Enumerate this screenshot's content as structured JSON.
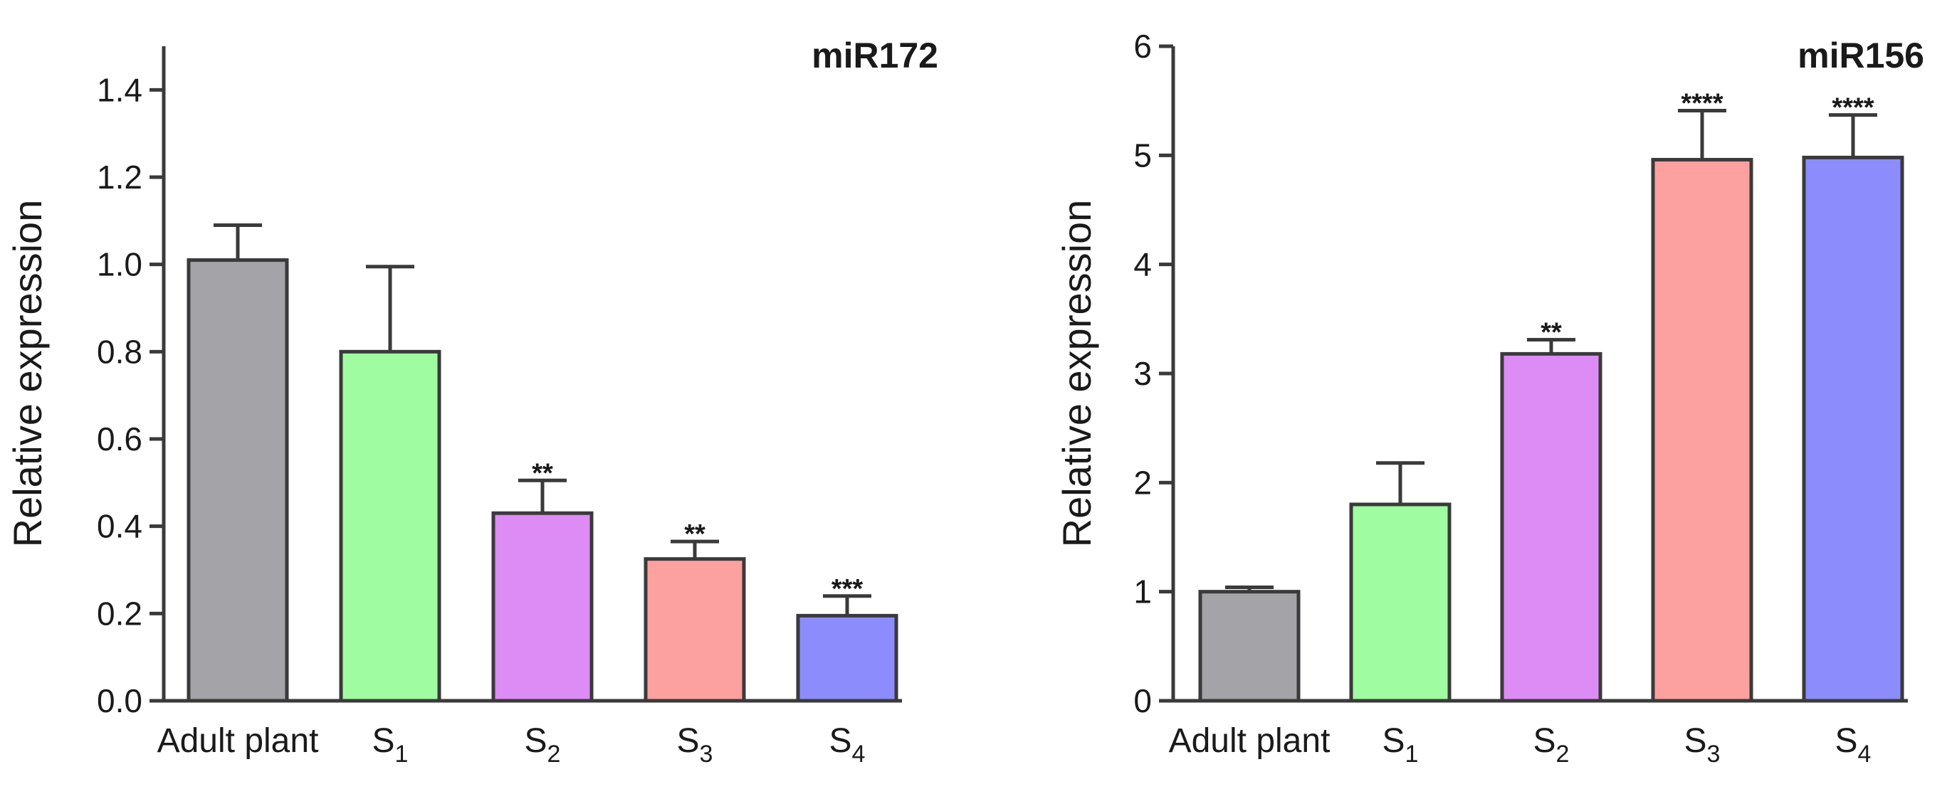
{
  "chart_data": [
    {
      "type": "bar",
      "title": "miR172",
      "ylabel": "Relative expression",
      "xlabel": "",
      "ylim": [
        0,
        1.5
      ],
      "yticks": [
        "0.0",
        "0.2",
        "0.4",
        "0.6",
        "0.8",
        "1.0",
        "1.2",
        "1.4"
      ],
      "categories": [
        {
          "base": "Adult plant",
          "sub": ""
        },
        {
          "base": "S",
          "sub": "1"
        },
        {
          "base": "S",
          "sub": "2"
        },
        {
          "base": "S",
          "sub": "3"
        },
        {
          "base": "S",
          "sub": "4"
        }
      ],
      "values": [
        1.01,
        0.8,
        0.43,
        0.325,
        0.195
      ],
      "errors": [
        0.08,
        0.195,
        0.075,
        0.04,
        0.045
      ],
      "significance": [
        "",
        "",
        "**",
        "**",
        "***"
      ],
      "colors": [
        "#a3a3a8",
        "#a0fca0",
        "#dc8cf4",
        "#fca0a0",
        "#8c8cfc"
      ]
    },
    {
      "type": "bar",
      "title": "miR156",
      "ylabel": "Relative expression",
      "xlabel": "",
      "ylim": [
        0,
        6
      ],
      "yticks": [
        "0",
        "1",
        "2",
        "3",
        "4",
        "5",
        "6"
      ],
      "categories": [
        {
          "base": "Adult plant",
          "sub": ""
        },
        {
          "base": "S",
          "sub": "1"
        },
        {
          "base": "S",
          "sub": "2"
        },
        {
          "base": "S",
          "sub": "3"
        },
        {
          "base": "S",
          "sub": "4"
        }
      ],
      "values": [
        1.0,
        1.8,
        3.18,
        4.96,
        4.98
      ],
      "errors": [
        0.04,
        0.38,
        0.13,
        0.45,
        0.39
      ],
      "significance": [
        "",
        "",
        "**",
        "****",
        "****"
      ],
      "colors": [
        "#a3a3a8",
        "#a0fca0",
        "#dc8cf4",
        "#fca0a0",
        "#8c8cfc"
      ]
    }
  ]
}
